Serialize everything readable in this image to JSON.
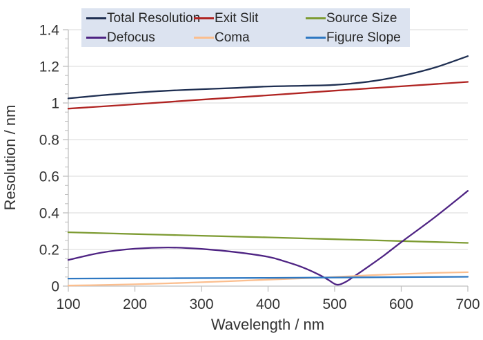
{
  "chart_data": {
    "type": "line",
    "title": "",
    "xlabel": "Wavelength / nm",
    "ylabel": "Resolution / nm",
    "xlim": [
      100,
      700
    ],
    "ylim": [
      0,
      1.4
    ],
    "x_ticks": [
      100,
      200,
      300,
      400,
      500,
      600,
      700
    ],
    "x_tick_labels": [
      "100",
      "200",
      "300",
      "400",
      "500",
      "600",
      "700"
    ],
    "y_ticks": [
      0,
      0.2,
      0.4,
      0.6,
      0.8,
      1,
      1.2,
      1.4
    ],
    "y_tick_labels": [
      "0",
      "0.2",
      "0.4",
      "0.6",
      "0.8",
      "1",
      "1.2",
      "1.4"
    ],
    "y_minor_tick_step": 0.05,
    "grid": "horizontal-major-only",
    "legend": {
      "position": "top-inside",
      "rows": [
        [
          "Total Resolution",
          "Exit Slit",
          "Source Size"
        ],
        [
          "Defocus",
          "Coma",
          "Figure Slope"
        ]
      ]
    },
    "series": [
      {
        "name": "Total Resolution",
        "color": "#1f2f52",
        "points": [
          [
            100,
            1.025
          ],
          [
            150,
            1.042
          ],
          [
            200,
            1.056
          ],
          [
            250,
            1.067
          ],
          [
            300,
            1.075
          ],
          [
            350,
            1.082
          ],
          [
            400,
            1.09
          ],
          [
            450,
            1.094
          ],
          [
            500,
            1.099
          ],
          [
            550,
            1.116
          ],
          [
            600,
            1.147
          ],
          [
            650,
            1.193
          ],
          [
            700,
            1.256
          ]
        ]
      },
      {
        "name": "Exit Slit",
        "color": "#b02422",
        "points": [
          [
            100,
            0.969
          ],
          [
            200,
            0.993
          ],
          [
            300,
            1.018
          ],
          [
            400,
            1.042
          ],
          [
            500,
            1.067
          ],
          [
            600,
            1.091
          ],
          [
            700,
            1.115
          ]
        ]
      },
      {
        "name": "Source Size",
        "color": "#7d9b32",
        "points": [
          [
            100,
            0.294
          ],
          [
            200,
            0.284
          ],
          [
            300,
            0.275
          ],
          [
            400,
            0.266
          ],
          [
            500,
            0.256
          ],
          [
            600,
            0.246
          ],
          [
            700,
            0.236
          ]
        ]
      },
      {
        "name": "Defocus",
        "color": "#4e2383",
        "points": [
          [
            100,
            0.143
          ],
          [
            150,
            0.183
          ],
          [
            200,
            0.204
          ],
          [
            250,
            0.211
          ],
          [
            300,
            0.203
          ],
          [
            350,
            0.186
          ],
          [
            400,
            0.16
          ],
          [
            425,
            0.135
          ],
          [
            450,
            0.105
          ],
          [
            475,
            0.065
          ],
          [
            490,
            0.035
          ],
          [
            503,
            0.008
          ],
          [
            515,
            0.02
          ],
          [
            530,
            0.055
          ],
          [
            550,
            0.105
          ],
          [
            575,
            0.17
          ],
          [
            600,
            0.24
          ],
          [
            650,
            0.375
          ],
          [
            700,
            0.52
          ]
        ]
      },
      {
        "name": "Coma",
        "color": "#fbbe8e",
        "points": [
          [
            100,
            0.003
          ],
          [
            150,
            0.006
          ],
          [
            200,
            0.01
          ],
          [
            250,
            0.015
          ],
          [
            300,
            0.021
          ],
          [
            350,
            0.028
          ],
          [
            400,
            0.035
          ],
          [
            450,
            0.042
          ],
          [
            500,
            0.05
          ],
          [
            550,
            0.059
          ],
          [
            600,
            0.066
          ],
          [
            650,
            0.072
          ],
          [
            700,
            0.076
          ]
        ]
      },
      {
        "name": "Figure Slope",
        "color": "#2e78c2",
        "points": [
          [
            100,
            0.041
          ],
          [
            250,
            0.043
          ],
          [
            400,
            0.045
          ],
          [
            550,
            0.048
          ],
          [
            700,
            0.051
          ]
        ]
      }
    ]
  },
  "styles": {
    "background": "#ffffff",
    "legend_background": "#dce3f0",
    "grid_color": "#d9d9d9",
    "axis_color": "#bfbfbf",
    "tick_color": "#bfbfbf",
    "text_color": "#333333",
    "legend_text_color": "#262626"
  }
}
